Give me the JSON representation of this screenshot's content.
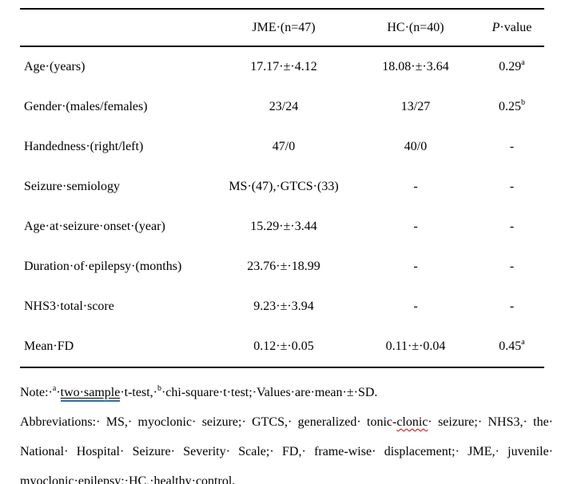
{
  "colors": {
    "text": "#000000",
    "grammar_underline": "#2E74B5",
    "spellcheck_underline": "#CC0000"
  },
  "table": {
    "header": {
      "label": "",
      "jme": "JME·(n=47)",
      "hc": "HC·(n=40)",
      "p_italic": "P",
      "p_rest": "·value"
    },
    "rows": [
      {
        "label": "Age·(years)",
        "jme": "17.17·±·4.12",
        "hc": "18.08·±·3.64",
        "p": "0.29",
        "p_sup": "a"
      },
      {
        "label": "Gender·(males/females)",
        "jme": "23/24",
        "hc": "13/27",
        "p": "0.25",
        "p_sup": "b"
      },
      {
        "label": "Handedness·(right/left)",
        "jme": "47/0",
        "hc": "40/0",
        "p": "-",
        "p_sup": ""
      },
      {
        "label": "Seizure·semiology",
        "jme": "MS·(47),·GTCS·(33)",
        "hc": "-",
        "p": "-",
        "p_sup": ""
      },
      {
        "label": "Age·at·seizure·onset·(year)",
        "jme": "15.29·±·3.44",
        "hc": "-",
        "p": "-",
        "p_sup": ""
      },
      {
        "label": "Duration·of·epilepsy·(months)",
        "jme": "23.76·±·18.99",
        "hc": "-",
        "p": "-",
        "p_sup": ""
      },
      {
        "label": "NHS3·total·score",
        "jme": "9.23·±·3.94",
        "hc": "-",
        "p": "-",
        "p_sup": ""
      },
      {
        "label": "Mean·FD",
        "jme": "0.12·±·0.05",
        "hc": "0.11·±·0.04",
        "p": "0.45",
        "p_sup": "a"
      }
    ]
  },
  "notes": {
    "note": {
      "prefix": "Note:·",
      "sup_a": "a",
      "sep1": "·",
      "grammar_text": "two·sample",
      "mid": "·t-test,·",
      "sup_b": "b",
      "suffix": "·chi-square·t·test;·Values·are·mean·±·SD."
    },
    "abbrev_line1": {
      "pre": "Abbreviations:· MS,· myoclonic· seizure;· GTCS,· generalized· tonic-",
      "misspelled": "clonic",
      "post": "· seizure;· NHS3,· the·"
    },
    "abbrev_line2": "National· Hospital· Seizure· Severity· Scale;· FD,· frame-wise· displacement;· JME,· juvenile·",
    "abbrev_line3": "myoclonic·epilepsy;·HC,·healthy·control."
  }
}
